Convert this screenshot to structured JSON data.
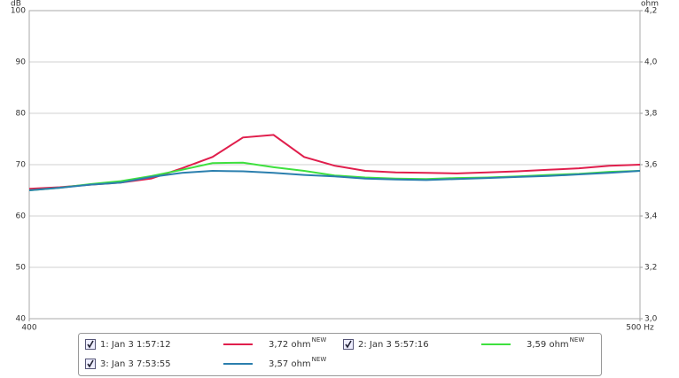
{
  "chart_data": {
    "type": "line",
    "y_unit": "dB",
    "y2_unit": "ohm",
    "xlim": [
      400,
      500
    ],
    "xticks": [
      400,
      {
        "value": 500,
        "label": "500 Hz"
      }
    ],
    "ylim": [
      40,
      100
    ],
    "yticks": [
      40,
      50,
      60,
      70,
      80,
      90,
      100
    ],
    "y2lim": [
      3.0,
      4.2
    ],
    "y2ticks": [
      {
        "value": 3.0,
        "label": "3,0"
      },
      {
        "value": 3.2,
        "label": "3,2"
      },
      {
        "value": 3.4,
        "label": "3,4"
      },
      {
        "value": 3.6,
        "label": "3,6"
      },
      {
        "value": 3.8,
        "label": "3,8"
      },
      {
        "value": 4.0,
        "label": "4,0"
      },
      {
        "value": 4.2,
        "label": "4,2"
      }
    ],
    "grid": true,
    "x": [
      400,
      405,
      410,
      415,
      420,
      425,
      430,
      435,
      440,
      445,
      450,
      455,
      460,
      465,
      470,
      475,
      480,
      485,
      490,
      495,
      500
    ],
    "series": [
      {
        "name": "1: Jan 3 1:57:12",
        "color": "#e01e4c",
        "axis": "y2",
        "checked": true,
        "legend_value": {
          "value": 3.72,
          "label": "3,72 ohm"
        },
        "badge": "NEW",
        "values": [
          3.506,
          3.512,
          3.522,
          3.53,
          3.546,
          3.586,
          3.63,
          3.706,
          3.716,
          3.63,
          3.596,
          3.576,
          3.57,
          3.568,
          3.566,
          3.57,
          3.574,
          3.58,
          3.586,
          3.596,
          3.6
        ]
      },
      {
        "name": "2: Jan 3 5:57:16",
        "color": "#3ee03e",
        "axis": "y2",
        "checked": true,
        "legend_value": {
          "value": 3.59,
          "label": "3,59 ohm"
        },
        "badge": "NEW",
        "values": [
          3.5,
          3.51,
          3.524,
          3.536,
          3.556,
          3.58,
          3.606,
          3.608,
          3.59,
          3.576,
          3.558,
          3.55,
          3.546,
          3.544,
          3.548,
          3.55,
          3.554,
          3.56,
          3.564,
          3.572,
          3.576
        ]
      },
      {
        "name": "3: Jan 3 7:53:55",
        "color": "#2b7fae",
        "axis": "y2",
        "checked": true,
        "legend_value": {
          "value": 3.57,
          "label": "3,57 ohm"
        },
        "badge": "NEW",
        "values": [
          3.5,
          3.51,
          3.522,
          3.53,
          3.552,
          3.568,
          3.576,
          3.574,
          3.568,
          3.56,
          3.554,
          3.546,
          3.542,
          3.54,
          3.544,
          3.548,
          3.552,
          3.556,
          3.562,
          3.568,
          3.576
        ]
      }
    ]
  }
}
